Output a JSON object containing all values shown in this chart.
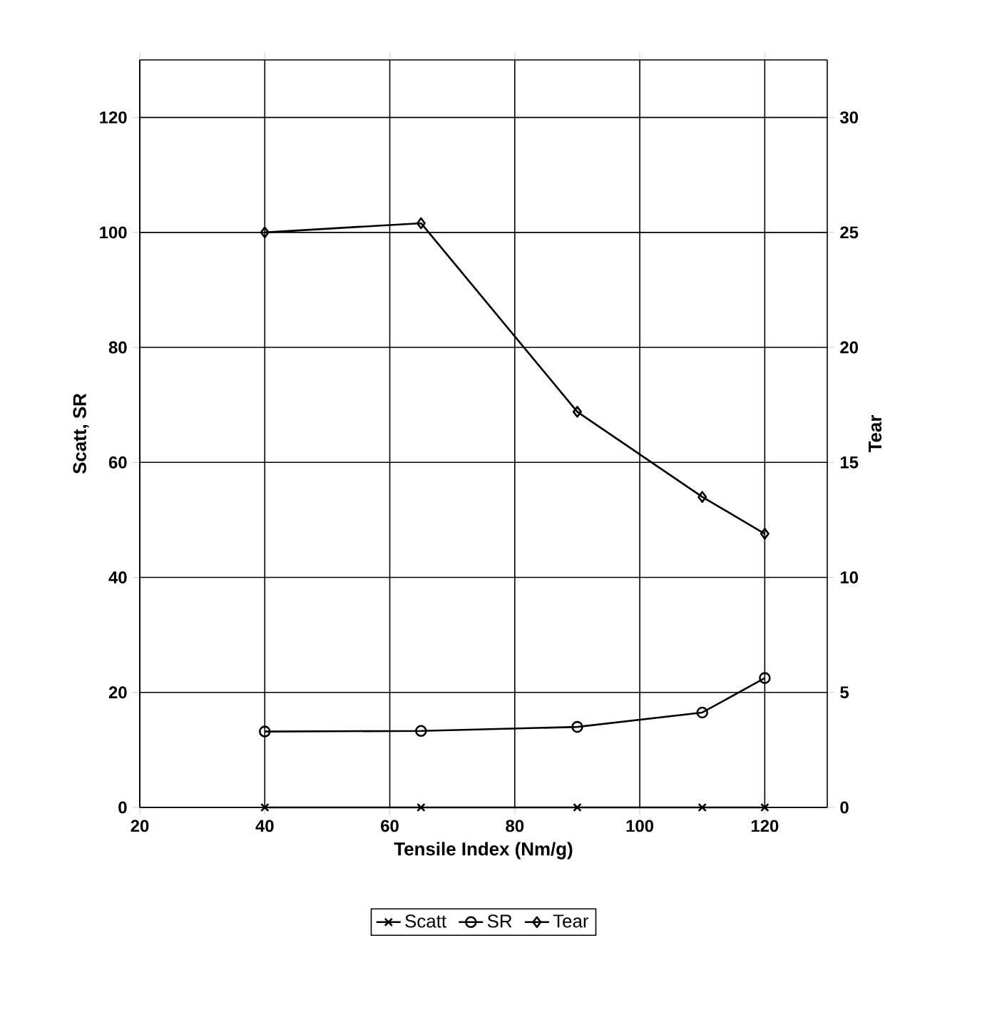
{
  "chart_data": {
    "type": "line",
    "xlabel": "Tensile Index (Nm/g)",
    "ylabel": "Scatt, SR",
    "y2label": "Tear",
    "x": [
      40,
      65,
      90,
      110,
      120
    ],
    "series": [
      {
        "name": "Scatt",
        "color": "#000000",
        "marker": "cross",
        "values": [
          0,
          0,
          0,
          0,
          0
        ]
      },
      {
        "name": "SR",
        "color": "#000000",
        "marker": "circle",
        "values": [
          13.2,
          13.3,
          14,
          16.5,
          22.5
        ]
      },
      {
        "name": "Tear",
        "color": "#000000",
        "marker": "diamond",
        "axis": "y2",
        "values": [
          25,
          25.4,
          17.2,
          13.5,
          11.9
        ]
      }
    ],
    "xlim": [
      20,
      130
    ],
    "xticks": [
      20,
      40,
      60,
      80,
      100,
      120
    ],
    "ylim": [
      0,
      130
    ],
    "yticks": [
      0,
      20,
      40,
      60,
      80,
      100,
      120
    ],
    "y2lim": [
      0,
      32.5
    ],
    "y2ticks": [
      0,
      5,
      10,
      15,
      20,
      25,
      30
    ],
    "grid": true,
    "legend": "bottom",
    "line_style": "solid"
  }
}
